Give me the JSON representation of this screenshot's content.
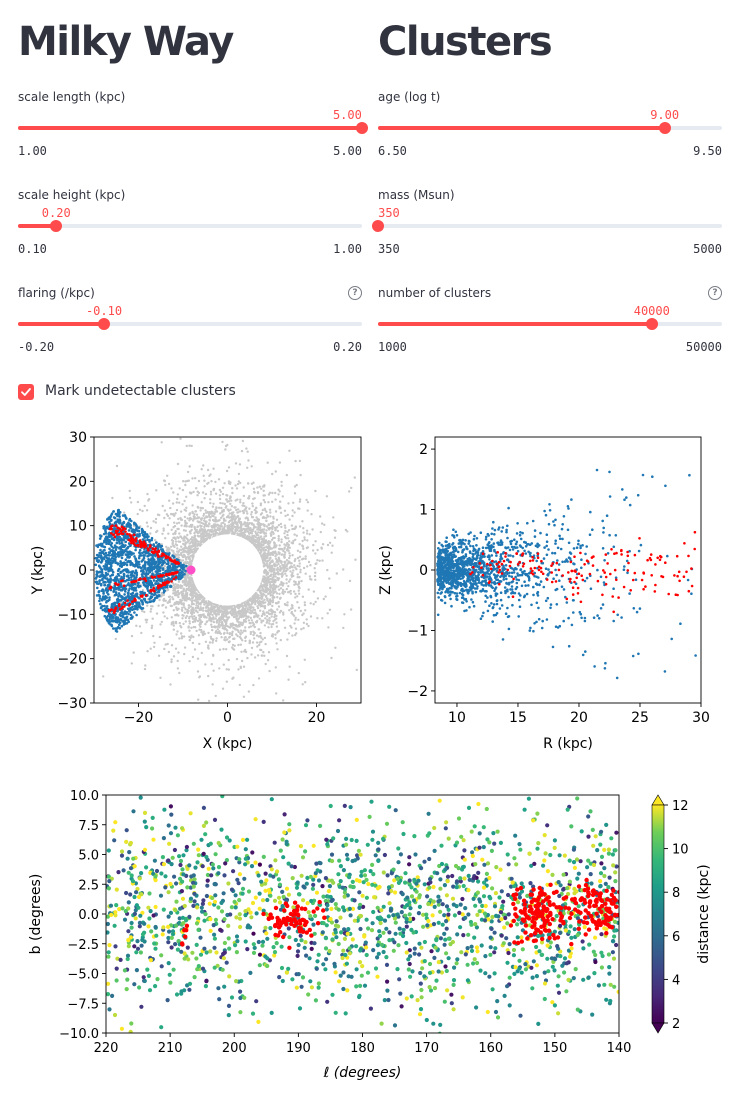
{
  "left_column": {
    "title": "Milky Way",
    "sliders": [
      {
        "label": "scale length (kpc)",
        "value_text": "5.00",
        "min_text": "1.00",
        "max_text": "5.00",
        "value": 5.0,
        "min": 1.0,
        "max": 5.0,
        "help": false
      },
      {
        "label": "scale height (kpc)",
        "value_text": "0.20",
        "min_text": "0.10",
        "max_text": "1.00",
        "value": 0.2,
        "min": 0.1,
        "max": 1.0,
        "help": false
      },
      {
        "label": "flaring (/kpc)",
        "value_text": "-0.10",
        "min_text": "-0.20",
        "max_text": "0.20",
        "value": -0.1,
        "min": -0.2,
        "max": 0.2,
        "help": true
      }
    ]
  },
  "right_column": {
    "title": "Clusters",
    "sliders": [
      {
        "label": "age (log t)",
        "value_text": "9.00",
        "min_text": "6.50",
        "max_text": "9.50",
        "value": 9.0,
        "min": 6.5,
        "max": 9.5,
        "help": false
      },
      {
        "label": "mass (Msun)",
        "value_text": "350",
        "min_text": "350",
        "max_text": "5000",
        "value": 350,
        "min": 350,
        "max": 5000,
        "help": false
      },
      {
        "label": "number of clusters",
        "value_text": "40000",
        "min_text": "1000",
        "max_text": "50000",
        "value": 40000,
        "min": 1000,
        "max": 50000,
        "help": true
      }
    ]
  },
  "help_icon_glyph": "?",
  "checkbox": {
    "label": "Mark undetectable clusters",
    "checked": true
  },
  "colors": {
    "accent": "#ff4b4b",
    "track": "#e6eaf1",
    "text": "#31333f",
    "all_clusters": "#c8c8c8",
    "detected": "#1f77b4",
    "undetectable": "#ff0000",
    "sun": "#ff4fc8"
  },
  "chart_data": [
    {
      "type": "scatter",
      "xlabel": "X (kpc)",
      "ylabel": "Y (kpc)",
      "xlim": [
        -30,
        30
      ],
      "ylim": [
        -30,
        30
      ],
      "xticks": [
        {
          "value": -20,
          "label": "−20"
        },
        {
          "value": 0,
          "label": "0"
        },
        {
          "value": 20,
          "label": "20"
        }
      ],
      "yticks": [
        {
          "value": -30,
          "label": "−30"
        },
        {
          "value": -20,
          "label": "−20"
        },
        {
          "value": -10,
          "label": "−10"
        },
        {
          "value": 0,
          "label": "0"
        },
        {
          "value": 10,
          "label": "10"
        },
        {
          "value": 20,
          "label": "20"
        },
        {
          "value": 30,
          "label": "30"
        }
      ],
      "sun_position": [
        -8.2,
        0
      ],
      "inner_hole_radius_kpc": 8,
      "wedge_l_range_deg": [
        140,
        220
      ]
    },
    {
      "type": "scatter",
      "xlabel": "R (kpc)",
      "ylabel": "Z (kpc)",
      "xlim": [
        8.2,
        30
      ],
      "ylim": [
        -2.2,
        2.2
      ],
      "xticks": [
        {
          "value": 10,
          "label": "10"
        },
        {
          "value": 15,
          "label": "15"
        },
        {
          "value": 20,
          "label": "20"
        },
        {
          "value": 25,
          "label": "25"
        },
        {
          "value": 30,
          "label": "30"
        }
      ],
      "yticks": [
        {
          "value": -2,
          "label": "−2"
        },
        {
          "value": -1,
          "label": "−1"
        },
        {
          "value": 0,
          "label": "0"
        },
        {
          "value": 1,
          "label": "1"
        },
        {
          "value": 2,
          "label": "2"
        }
      ]
    },
    {
      "type": "scatter",
      "xlabel": "ℓ (degrees)",
      "ylabel": "b (degrees)",
      "xlim": [
        220,
        140
      ],
      "ylim": [
        -10,
        10
      ],
      "xticks": [
        {
          "value": 220,
          "label": "220"
        },
        {
          "value": 210,
          "label": "210"
        },
        {
          "value": 200,
          "label": "200"
        },
        {
          "value": 190,
          "label": "190"
        },
        {
          "value": 180,
          "label": "180"
        },
        {
          "value": 170,
          "label": "170"
        },
        {
          "value": 160,
          "label": "160"
        },
        {
          "value": 150,
          "label": "150"
        },
        {
          "value": 140,
          "label": "140"
        }
      ],
      "yticks": [
        {
          "value": -10,
          "label": "−10.0"
        },
        {
          "value": -7.5,
          "label": "−7.5"
        },
        {
          "value": -5,
          "label": "−5.0"
        },
        {
          "value": -2.5,
          "label": "−2.5"
        },
        {
          "value": 0,
          "label": "0.0"
        },
        {
          "value": 2.5,
          "label": "2.5"
        },
        {
          "value": 5,
          "label": "5.0"
        },
        {
          "value": 7.5,
          "label": "7.5"
        },
        {
          "value": 10,
          "label": "10.0"
        }
      ],
      "colorbar": {
        "label": "distance (kpc)",
        "range": [
          2,
          12
        ],
        "ticks": [
          {
            "value": 2,
            "label": "2"
          },
          {
            "value": 4,
            "label": "4"
          },
          {
            "value": 6,
            "label": "6"
          },
          {
            "value": 8,
            "label": "8"
          },
          {
            "value": 10,
            "label": "10"
          },
          {
            "value": 12,
            "label": "12"
          }
        ],
        "colormap": "viridis",
        "extend": "both"
      },
      "undetectable_clumps": [
        {
          "l": 191,
          "b": -0.5
        },
        {
          "l": 152,
          "b": 0
        },
        {
          "l": 143,
          "b": 0.5
        },
        {
          "l": 208,
          "b": -1.8
        }
      ]
    }
  ]
}
